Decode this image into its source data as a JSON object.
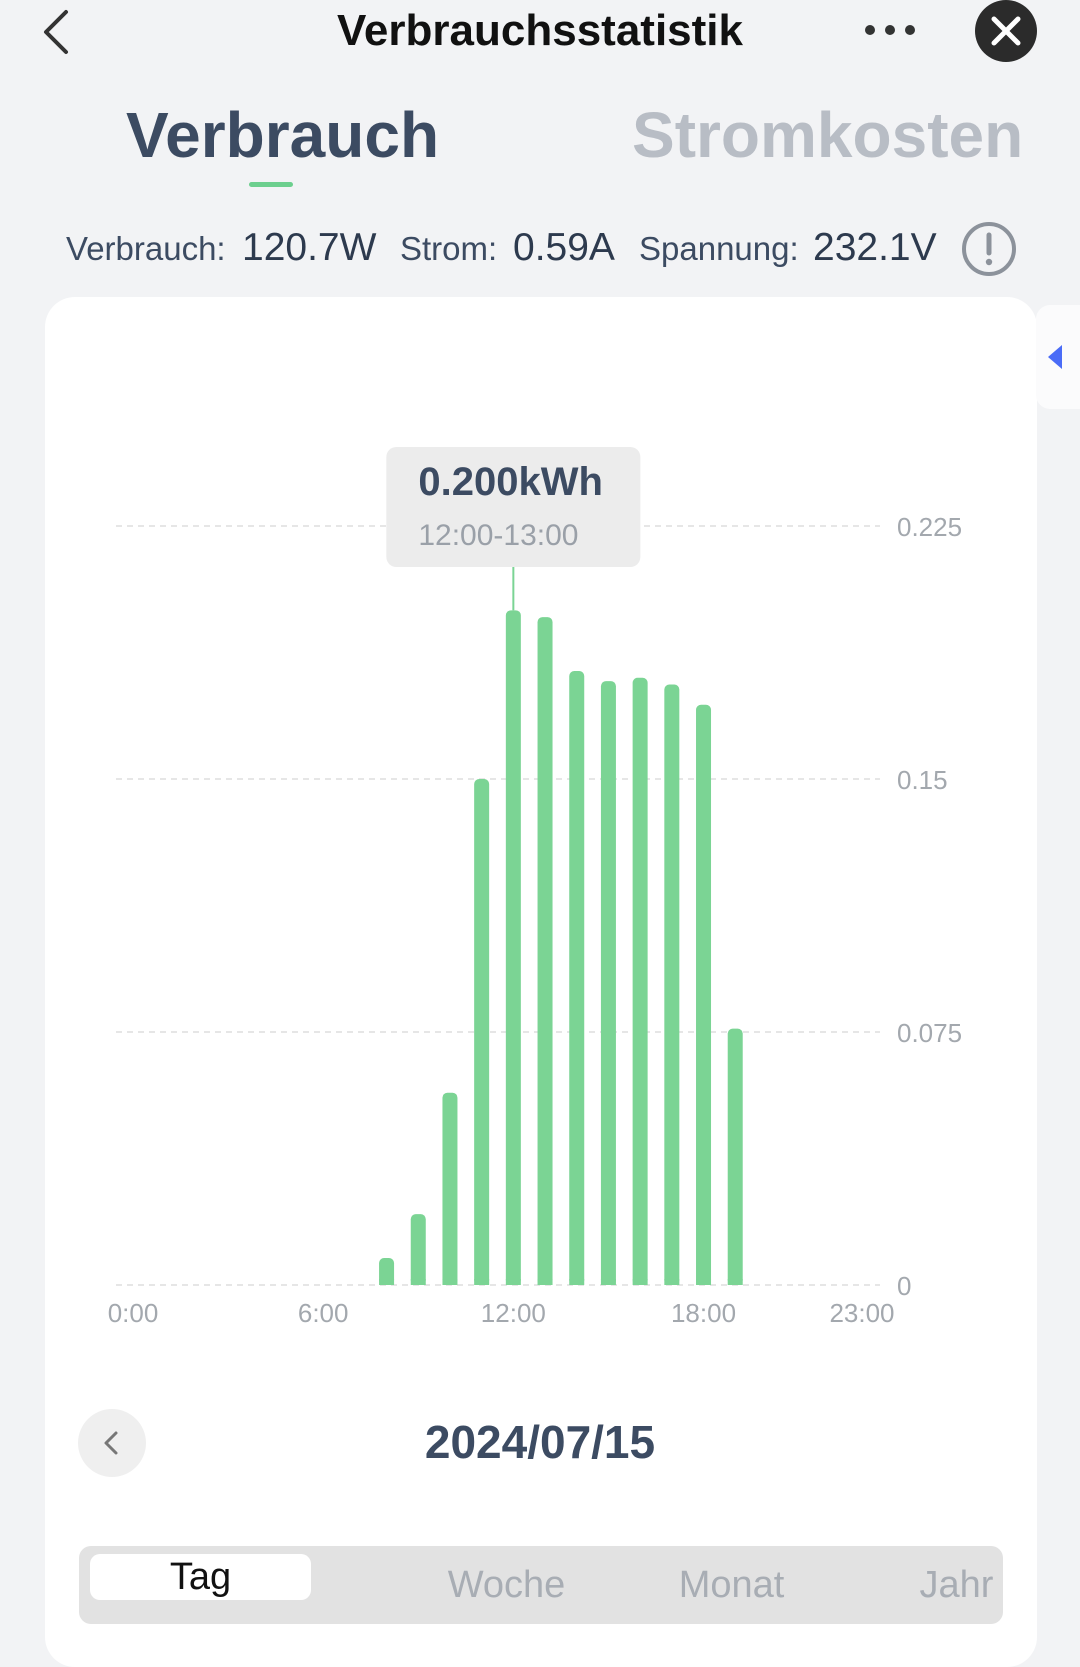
{
  "header": {
    "title": "Verbrauchsstatistik"
  },
  "tabs": [
    {
      "label": "Verbrauch",
      "active": true
    },
    {
      "label": "Stromkosten",
      "active": false
    }
  ],
  "stats": {
    "consumption_label": "Verbrauch:",
    "consumption_value": "120.7W",
    "current_label": "Strom:",
    "current_value": "0.59A",
    "voltage_label": "Spannung:",
    "voltage_value": "232.1V"
  },
  "tooltip": {
    "value": "0.200kWh",
    "range": "12:00-13:00"
  },
  "chart_data": {
    "type": "bar",
    "categories": [
      "0:00",
      "1:00",
      "2:00",
      "3:00",
      "4:00",
      "5:00",
      "6:00",
      "7:00",
      "8:00",
      "9:00",
      "10:00",
      "11:00",
      "12:00",
      "13:00",
      "14:00",
      "15:00",
      "16:00",
      "17:00",
      "18:00",
      "19:00",
      "20:00",
      "21:00",
      "22:00",
      "23:00"
    ],
    "values": [
      0,
      0,
      0,
      0,
      0,
      0,
      0,
      0,
      0.008,
      0.021,
      0.057,
      0.15,
      0.2,
      0.198,
      0.182,
      0.179,
      0.18,
      0.178,
      0.172,
      0.076,
      0,
      0,
      0,
      0
    ],
    "ylim": [
      0,
      0.225
    ],
    "yticks": [
      "0",
      "0.075",
      "0.15",
      "0.225"
    ],
    "xticks": [
      "0:00",
      "6:00",
      "12:00",
      "18:00",
      "23:00"
    ],
    "selected_index": 12,
    "bar_color": "#7bd494",
    "grid": true
  },
  "date": {
    "label": "2024/07/15"
  },
  "period": {
    "items": [
      "Tag",
      "Woche",
      "Monat",
      "Jahr"
    ],
    "active": "Tag"
  },
  "colors": {
    "accent": "#6ccf8e",
    "primary_text": "#3c4b62",
    "muted": "#b8bdc5",
    "side_arrow": "#4a6cf7"
  }
}
